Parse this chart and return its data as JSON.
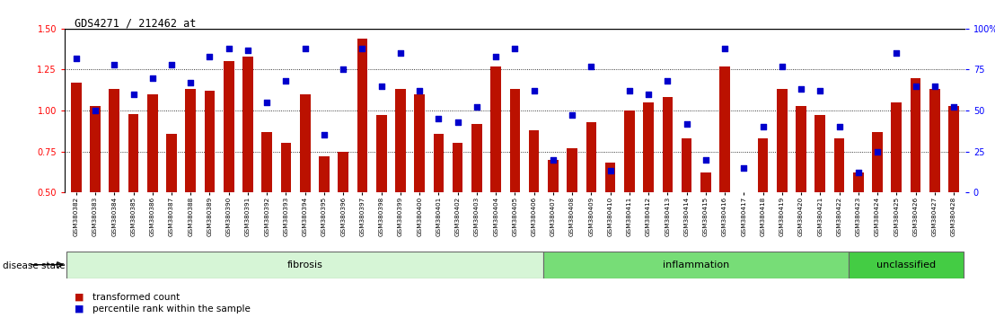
{
  "title": "GDS4271 / 212462_at",
  "samples": [
    "GSM380382",
    "GSM380383",
    "GSM380384",
    "GSM380385",
    "GSM380386",
    "GSM380387",
    "GSM380388",
    "GSM380389",
    "GSM380390",
    "GSM380391",
    "GSM380392",
    "GSM380393",
    "GSM380394",
    "GSM380395",
    "GSM380396",
    "GSM380397",
    "GSM380398",
    "GSM380399",
    "GSM380400",
    "GSM380401",
    "GSM380402",
    "GSM380403",
    "GSM380404",
    "GSM380405",
    "GSM380406",
    "GSM380407",
    "GSM380408",
    "GSM380409",
    "GSM380410",
    "GSM380411",
    "GSM380412",
    "GSM380413",
    "GSM380414",
    "GSM380415",
    "GSM380416",
    "GSM380417",
    "GSM380418",
    "GSM380419",
    "GSM380420",
    "GSM380421",
    "GSM380422",
    "GSM380423",
    "GSM380424",
    "GSM380425",
    "GSM380426",
    "GSM380427",
    "GSM380428"
  ],
  "bar_heights": [
    1.17,
    1.03,
    1.13,
    0.98,
    1.1,
    0.86,
    1.13,
    1.12,
    1.3,
    1.33,
    0.87,
    0.8,
    1.1,
    0.72,
    0.75,
    1.44,
    0.97,
    1.13,
    1.1,
    0.86,
    0.8,
    0.92,
    1.27,
    1.13,
    0.88,
    0.7,
    0.77,
    0.93,
    0.68,
    1.0,
    1.05,
    1.08,
    0.83,
    0.62,
    1.27,
    0.5,
    0.83,
    1.13,
    1.03,
    0.97,
    0.83,
    0.62,
    0.87,
    1.05,
    1.2,
    1.13,
    1.03
  ],
  "percentile_ranks": [
    82,
    50,
    78,
    60,
    70,
    78,
    67,
    83,
    88,
    87,
    55,
    68,
    88,
    35,
    75,
    88,
    65,
    85,
    62,
    45,
    43,
    52,
    83,
    88,
    62,
    20,
    47,
    77,
    13,
    62,
    60,
    68,
    42,
    20,
    88,
    15,
    40,
    77,
    63,
    62,
    40,
    12,
    25,
    85,
    65,
    65,
    52
  ],
  "groups": [
    {
      "label": "fibrosis",
      "start": 0,
      "end": 25,
      "color": "#d6f5d6"
    },
    {
      "label": "inflammation",
      "start": 25,
      "end": 41,
      "color": "#77dd77"
    },
    {
      "label": "unclassified",
      "start": 41,
      "end": 47,
      "color": "#44cc44"
    }
  ],
  "bar_color": "#bb1100",
  "dot_color": "#0000cc",
  "ylim_left": [
    0.5,
    1.5
  ],
  "ylim_right": [
    0,
    100
  ],
  "yticks_left": [
    0.5,
    0.75,
    1.0,
    1.25,
    1.5
  ],
  "yticks_right": [
    0,
    25,
    50,
    75,
    100
  ],
  "ytick_labels_right": [
    "0",
    "25",
    "50",
    "75",
    "100%"
  ],
  "hlines": [
    0.75,
    1.0,
    1.25
  ],
  "legend_items": [
    {
      "label": "transformed count",
      "color": "#bb1100"
    },
    {
      "label": "percentile rank within the sample",
      "color": "#0000cc"
    }
  ],
  "disease_state_label": "disease state",
  "background_color": "#ffffff",
  "xticklabel_bg": "#cccccc"
}
